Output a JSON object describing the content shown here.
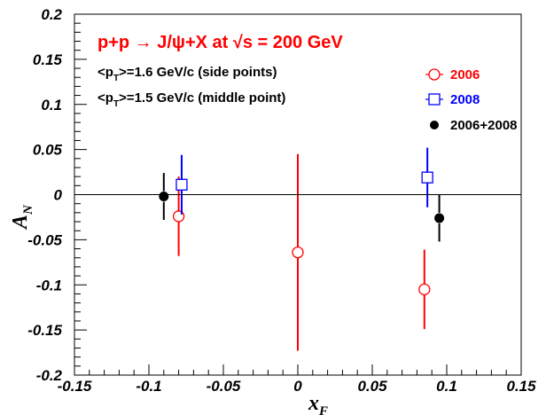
{
  "chart_data": {
    "type": "scatter",
    "title": "p+p → J/ψ+X  at √s = 200 GeV",
    "title_color": "#ff0000",
    "annotations": [
      {
        "pre": "<p",
        "sub": "T",
        "post": ">=1.6 GeV/c (side points)"
      },
      {
        "pre": "<p",
        "sub": "T",
        "post": ">=1.5 GeV/c (middle point)"
      }
    ],
    "xlabel": "x",
    "xlabel_sub": "F",
    "ylabel": "A",
    "ylabel_sub": "N",
    "xlim": [
      -0.15,
      0.15
    ],
    "ylim": [
      -0.2,
      0.2
    ],
    "xticks": [
      -0.15,
      -0.1,
      -0.05,
      0,
      0.05,
      0.1,
      0.15
    ],
    "xtick_labels": [
      "-0.15",
      "-0.1",
      "-0.05",
      "0",
      "0.05",
      "0.1",
      "0.15"
    ],
    "yticks": [
      -0.2,
      -0.15,
      -0.1,
      -0.05,
      0,
      0.05,
      0.1,
      0.15,
      0.2
    ],
    "ytick_labels": [
      "-0.2",
      "-0.15",
      "-0.1",
      "-0.05",
      "0",
      "0.05",
      "0.1",
      "0.15",
      "0.2"
    ],
    "zero_line": true,
    "grid": false,
    "legend_position": "top-right",
    "series": [
      {
        "name": "2006",
        "color": "#ff0000",
        "marker": "open-circle",
        "points": [
          {
            "x": -0.08,
            "y": -0.024,
            "err": 0.044
          },
          {
            "x": 0.0,
            "y": -0.064,
            "err": 0.109
          },
          {
            "x": 0.085,
            "y": -0.105,
            "err": 0.044
          }
        ]
      },
      {
        "name": "2008",
        "color": "#0000ff",
        "marker": "open-square",
        "points": [
          {
            "x": -0.078,
            "y": 0.011,
            "err": 0.033
          },
          {
            "x": 0.087,
            "y": 0.019,
            "err": 0.033
          }
        ]
      },
      {
        "name": "2006+2008",
        "color": "#000000",
        "marker": "filled-circle",
        "points": [
          {
            "x": -0.09,
            "y": -0.002,
            "err": 0.026
          },
          {
            "x": 0.095,
            "y": -0.026,
            "err": 0.026
          }
        ]
      }
    ]
  }
}
